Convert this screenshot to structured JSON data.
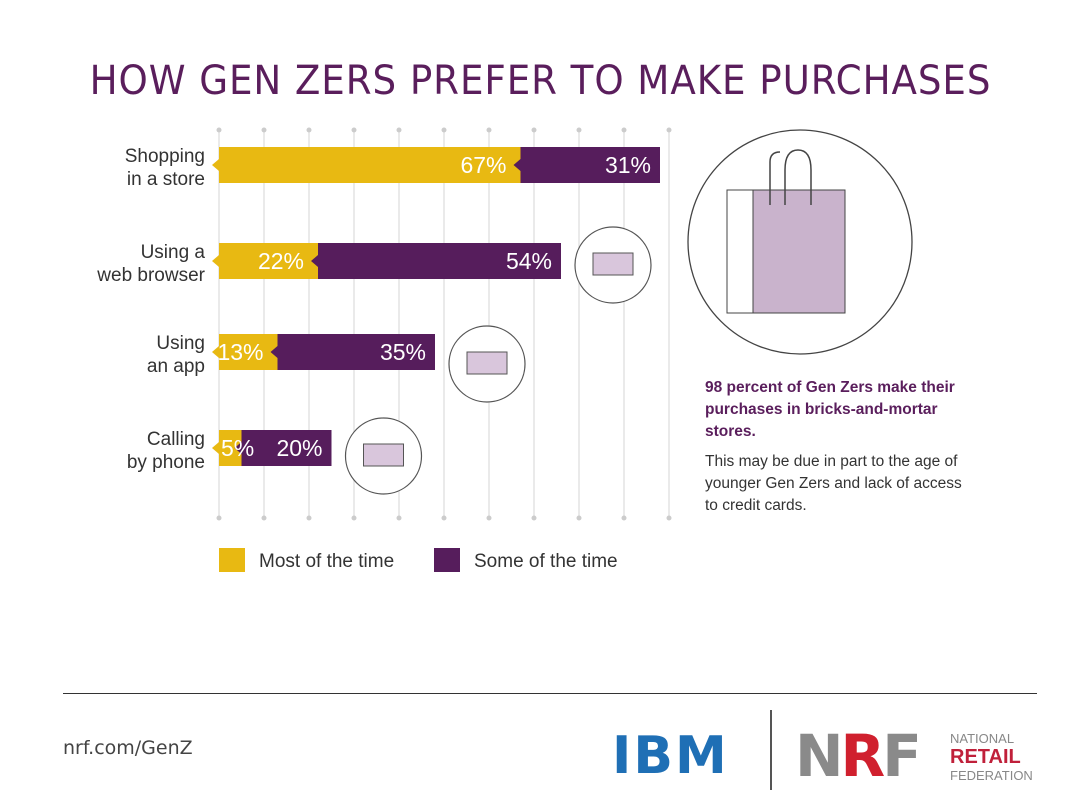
{
  "title": "HOW GEN ZERS PREFER TO MAKE PURCHASES",
  "chart_data": {
    "type": "bar",
    "orientation": "horizontal",
    "stacked": true,
    "categories": [
      [
        "Shopping",
        "in a store"
      ],
      [
        "Using a",
        "web browser"
      ],
      [
        "Using",
        "an app"
      ],
      [
        "Calling",
        "by phone"
      ]
    ],
    "series": [
      {
        "name": "Most of the time",
        "values": [
          67,
          22,
          13,
          5
        ],
        "color": "#e8b912"
      },
      {
        "name": "Some of the time",
        "values": [
          31,
          54,
          35,
          20
        ],
        "color": "#561d5c"
      }
    ],
    "xlim": [
      0,
      100
    ],
    "grid": true,
    "legend": "bottom",
    "icons": [
      "shopping-bag-icon",
      "keyboard-icon",
      "app-touch-icon",
      "telephone-icon"
    ]
  },
  "side": {
    "headline": "98 percent of Gen Zers make their purchases in bricks-and-mortar stores.",
    "body": "This may be due in part to the age of younger Gen Zers and lack of access to credit cards."
  },
  "footer": {
    "url": "nrf.com/GenZ",
    "ibm": "IBM",
    "nrf": "NRF",
    "nrf_name": [
      "NATIONAL",
      "RETAIL",
      "FEDERATION"
    ]
  }
}
